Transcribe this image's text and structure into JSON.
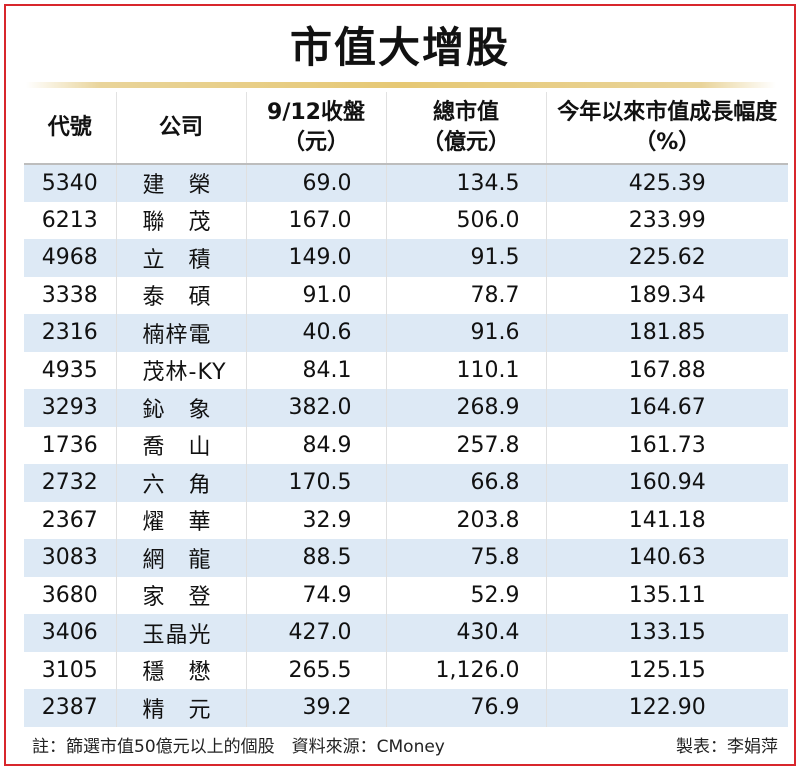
{
  "title": "市值大增股",
  "headers": {
    "code": "代號",
    "company": "公司",
    "price_line1": "9/12收盤",
    "price_line2": "（元）",
    "cap_line1": "總市值",
    "cap_line2": "（億元）",
    "growth_line1": "今年以來市值成長幅度",
    "growth_line2": "（%）"
  },
  "rows": [
    {
      "code": "5340",
      "company": "建　榮",
      "price": "69.0",
      "cap": "134.5",
      "growth": "425.39"
    },
    {
      "code": "6213",
      "company": "聯　茂",
      "price": "167.0",
      "cap": "506.0",
      "growth": "233.99"
    },
    {
      "code": "4968",
      "company": "立　積",
      "price": "149.0",
      "cap": "91.5",
      "growth": "225.62"
    },
    {
      "code": "3338",
      "company": "泰　碩",
      "price": "91.0",
      "cap": "78.7",
      "growth": "189.34"
    },
    {
      "code": "2316",
      "company": "楠梓電",
      "price": "40.6",
      "cap": "91.6",
      "growth": "181.85"
    },
    {
      "code": "4935",
      "company": "茂林-KY",
      "price": "84.1",
      "cap": "110.1",
      "growth": "167.88"
    },
    {
      "code": "3293",
      "company": "鈊　象",
      "price": "382.0",
      "cap": "268.9",
      "growth": "164.67"
    },
    {
      "code": "1736",
      "company": "喬　山",
      "price": "84.9",
      "cap": "257.8",
      "growth": "161.73"
    },
    {
      "code": "2732",
      "company": "六　角",
      "price": "170.5",
      "cap": "66.8",
      "growth": "160.94"
    },
    {
      "code": "2367",
      "company": "燿　華",
      "price": "32.9",
      "cap": "203.8",
      "growth": "141.18"
    },
    {
      "code": "3083",
      "company": "網　龍",
      "price": "88.5",
      "cap": "75.8",
      "growth": "140.63"
    },
    {
      "code": "3680",
      "company": "家　登",
      "price": "74.9",
      "cap": "52.9",
      "growth": "135.11"
    },
    {
      "code": "3406",
      "company": "玉晶光",
      "price": "427.0",
      "cap": "430.4",
      "growth": "133.15"
    },
    {
      "code": "3105",
      "company": "穩　懋",
      "price": "265.5",
      "cap": "1,126.0",
      "growth": "125.15"
    },
    {
      "code": "2387",
      "company": "精　元",
      "price": "39.2",
      "cap": "76.9",
      "growth": "122.90"
    }
  ],
  "footer": {
    "note": "註：篩選市值50億元以上的個股　資料來源：CMoney",
    "maker": "製表：李娟萍"
  },
  "colors": {
    "frame": "#d8262c",
    "row_stripe": "#dde9f5",
    "title_rule": "#e6c874"
  }
}
